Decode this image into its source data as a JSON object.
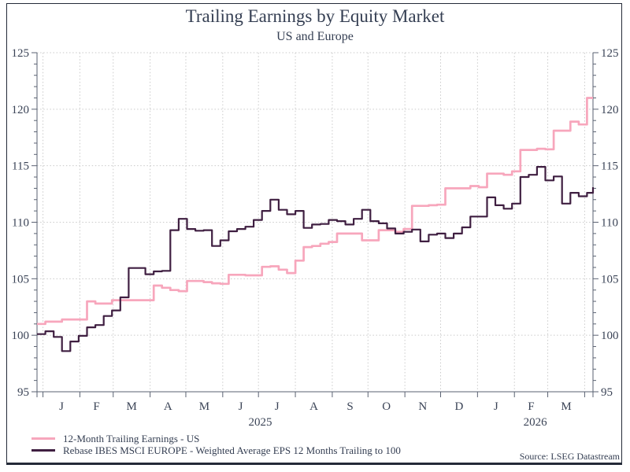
{
  "title": "Trailing Earnings by Equity Market",
  "subtitle": "US and Europe",
  "source_note": "Source: LSEG Datastream",
  "colors": {
    "us_line": "#f7a6bc",
    "europe_line": "#3f1f41",
    "text": "#3a4356",
    "axis": "#5a6272",
    "grid": "#cacaca",
    "frame_border": "#242a38"
  },
  "chart_data": {
    "type": "line",
    "step": true,
    "title": "Trailing Earnings by Equity Market",
    "subtitle": "US and Europe",
    "ylim": [
      95,
      125
    ],
    "y_ticks": [
      95,
      100,
      105,
      110,
      115,
      120,
      125
    ],
    "y_minor_step": 1,
    "grid": "dotted",
    "legend_position": "bottom-left",
    "x_start": "2024-12-27",
    "x_end": "2026-04-08",
    "x_month_tick_labels": [
      "J",
      "F",
      "M",
      "A",
      "M",
      "J",
      "J",
      "A",
      "S",
      "O",
      "N",
      "D",
      "J",
      "F",
      "M"
    ],
    "x_year_labels": [
      "2025",
      "2026"
    ],
    "dates": [
      "2024-12-27",
      "2025-01-03",
      "2025-01-10",
      "2025-01-17",
      "2025-01-24",
      "2025-01-31",
      "2025-02-07",
      "2025-02-14",
      "2025-02-21",
      "2025-02-28",
      "2025-03-07",
      "2025-03-14",
      "2025-03-21",
      "2025-03-28",
      "2025-04-04",
      "2025-04-11",
      "2025-04-18",
      "2025-04-25",
      "2025-05-02",
      "2025-05-09",
      "2025-05-16",
      "2025-05-23",
      "2025-05-30",
      "2025-06-06",
      "2025-06-13",
      "2025-06-20",
      "2025-06-27",
      "2025-07-04",
      "2025-07-11",
      "2025-07-18",
      "2025-07-25",
      "2025-08-01",
      "2025-08-08",
      "2025-08-15",
      "2025-08-22",
      "2025-08-29",
      "2025-09-05",
      "2025-09-12",
      "2025-09-19",
      "2025-09-26",
      "2025-10-03",
      "2025-10-10",
      "2025-10-17",
      "2025-10-24",
      "2025-10-31",
      "2025-11-07",
      "2025-11-14",
      "2025-11-21",
      "2025-11-28",
      "2025-12-05",
      "2025-12-12",
      "2025-12-19",
      "2025-12-26",
      "2026-01-02",
      "2026-01-09",
      "2026-01-16",
      "2026-01-23",
      "2026-01-30",
      "2026-02-06",
      "2026-02-13",
      "2026-02-20",
      "2026-02-27",
      "2026-03-06",
      "2026-03-13",
      "2026-03-20",
      "2026-03-27",
      "2026-04-03",
      "2026-04-08"
    ],
    "series": [
      {
        "name": "12-Month Trailing Earnings - US",
        "color": "#f7a6bc",
        "values": [
          101.0,
          101.2,
          101.2,
          101.4,
          101.4,
          101.4,
          103.0,
          102.8,
          102.8,
          103.1,
          103.1,
          103.1,
          103.1,
          103.1,
          104.4,
          104.2,
          104.0,
          103.9,
          104.8,
          104.8,
          104.7,
          104.6,
          104.55,
          105.35,
          105.35,
          105.3,
          105.3,
          106.05,
          106.1,
          105.8,
          105.5,
          106.6,
          107.8,
          107.9,
          108.1,
          108.25,
          109.0,
          109.0,
          109.0,
          108.4,
          108.4,
          109.3,
          109.3,
          109.15,
          109.4,
          111.45,
          111.45,
          111.5,
          111.55,
          113.0,
          113.0,
          113.0,
          113.2,
          113.1,
          114.3,
          114.3,
          114.2,
          114.5,
          116.4,
          116.4,
          116.5,
          116.45,
          118.1,
          118.1,
          118.9,
          118.65,
          121.0,
          121.0
        ]
      },
      {
        "name": "Rebase IBES MSCI EUROPE - Weighted Average EPS 12 Months Trailing to 100",
        "color": "#3f1f41",
        "values": [
          100.1,
          100.35,
          99.85,
          98.6,
          99.45,
          99.95,
          100.7,
          100.9,
          101.7,
          102.2,
          103.35,
          105.95,
          105.95,
          105.4,
          105.65,
          105.7,
          109.3,
          110.3,
          109.4,
          109.25,
          109.3,
          107.9,
          108.4,
          109.2,
          109.4,
          109.6,
          110.2,
          111.0,
          112.0,
          111.1,
          110.7,
          111.0,
          109.5,
          109.8,
          109.85,
          110.2,
          110.1,
          109.8,
          110.3,
          111.1,
          110.1,
          109.9,
          109.45,
          109.0,
          109.15,
          109.35,
          108.3,
          108.9,
          109.0,
          108.6,
          109.0,
          109.55,
          110.5,
          110.5,
          112.2,
          111.5,
          111.2,
          111.65,
          114.0,
          114.2,
          114.9,
          113.7,
          114.05,
          111.65,
          112.6,
          112.3,
          112.6,
          113.1
        ]
      }
    ]
  }
}
